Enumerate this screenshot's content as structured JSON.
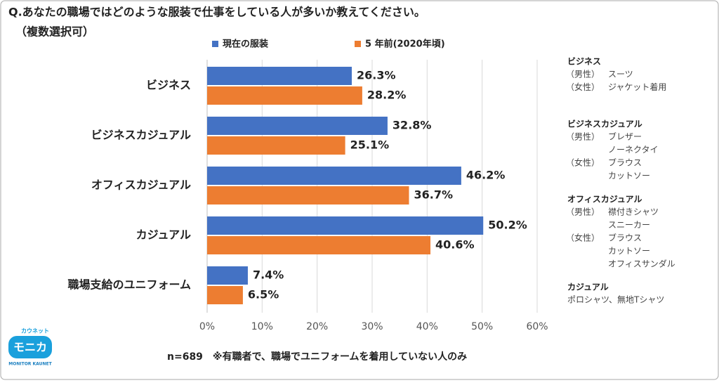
{
  "chart_data": {
    "type": "bar",
    "orientation": "horizontal",
    "title": "Q.あなたの職場ではどのような服装で仕事をしている人が多いか教えてください。",
    "subtitle": "（複数選択可）",
    "categories": [
      "ビジネス",
      "ビジネスカジュアル",
      "オフィスカジュアル",
      "カジュアル",
      "職場支給のユニフォーム"
    ],
    "series": [
      {
        "name": "現在の服装",
        "color": "#4472c4",
        "values": [
          26.3,
          32.8,
          46.2,
          50.2,
          7.4
        ],
        "value_labels": [
          "26.3%",
          "32.8%",
          "46.2%",
          "50.2%",
          "7.4%"
        ]
      },
      {
        "name": "5 年前(2020年頃)",
        "color": "#ed7d31",
        "values": [
          28.2,
          25.1,
          36.7,
          40.6,
          6.5
        ],
        "value_labels": [
          "28.2%",
          "25.1%",
          "36.7%",
          "40.6%",
          "6.5%"
        ]
      }
    ],
    "xlim": [
      0,
      60
    ],
    "xticks": [
      {
        "value": 0,
        "label": "0%"
      },
      {
        "value": 10,
        "label": "10%"
      },
      {
        "value": 20,
        "label": "20%"
      },
      {
        "value": 30,
        "label": "30%"
      },
      {
        "value": 40,
        "label": "40%"
      },
      {
        "value": 50,
        "label": "50%"
      },
      {
        "value": 60,
        "label": "60%"
      }
    ],
    "grid": true,
    "footnote": "n=689　※有職者で、職場でユニフォームを着用していない人のみ",
    "notes": [
      {
        "title": "ビジネス",
        "groups": [
          {
            "who": "（男性）",
            "items": [
              "スーツ"
            ]
          },
          {
            "who": "（女性）",
            "items": [
              "ジャケット着用"
            ]
          }
        ]
      },
      {
        "title": "ビジネスカジュアル",
        "groups": [
          {
            "who": "（男性）",
            "items": [
              "ブレザー",
              "ノーネクタイ"
            ]
          },
          {
            "who": "（女性）",
            "items": [
              "ブラウス",
              "カットソー"
            ]
          }
        ]
      },
      {
        "title": "オフィスカジュアル",
        "groups": [
          {
            "who": "（男性）",
            "items": [
              "襟付きシャツ",
              "スニーカー"
            ]
          },
          {
            "who": "（女性）",
            "items": [
              "ブラウス",
              "カットソー",
              "オフィスサンダル"
            ]
          }
        ]
      },
      {
        "title": "カジュアル",
        "text": "ポロシャツ、無地Tシャツ"
      }
    ]
  },
  "logo": {
    "top": "カウネット",
    "main": "モニカ",
    "bottom": "MONITOR KAUNET"
  }
}
